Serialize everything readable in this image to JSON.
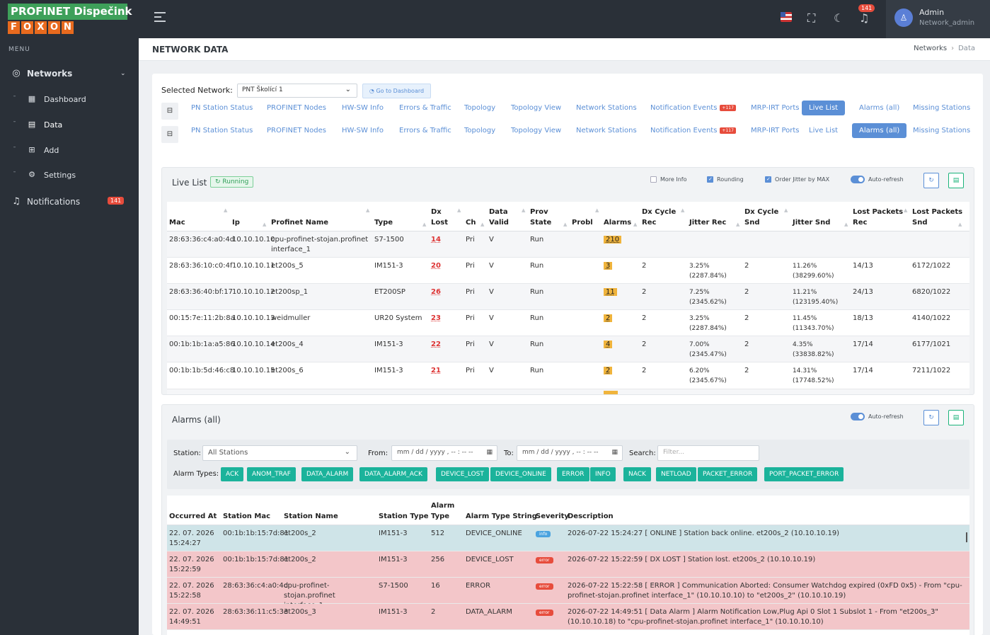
{
  "brand": {
    "title": "PROFINET Dispečink",
    "letters": [
      "F",
      "O",
      "X",
      "O",
      "N"
    ]
  },
  "sidebar": {
    "menu_label": "MENU",
    "networks": "Networks",
    "items": [
      {
        "label": "Dashboard"
      },
      {
        "label": "Data"
      },
      {
        "label": "Add"
      },
      {
        "label": "Settings"
      }
    ],
    "notifications": "Notifications",
    "notifications_count": "141"
  },
  "topbar": {
    "bell_count": "141",
    "user_name": "Admin",
    "user_role": "Network_admin"
  },
  "page": {
    "title": "NETWORK DATA",
    "breadcrumb": [
      "Networks",
      "Data"
    ]
  },
  "selector": {
    "label": "Selected Network:",
    "value": "PNT Školící 1",
    "go_button": "Go to Dashboard"
  },
  "tabs": {
    "labels": [
      "PN Station Status",
      "PROFINET Nodes",
      "HW-SW Info",
      "Errors & Traffic",
      "Topology",
      "Topology View",
      "Network Stations",
      "Notification Events",
      "MRP-IRT Ports",
      "Live List",
      "Alarms (all)",
      "Missing Stations"
    ],
    "badge": "+117",
    "row1_active": "Live List",
    "row2_active": "Alarms (all)"
  },
  "livelist": {
    "title": "Live List",
    "status": "Running",
    "options": [
      "More Info",
      "Rounding",
      "Order Jitter by MAX",
      "Auto-refresh"
    ],
    "headers": [
      "Mac",
      "Ip",
      "Profinet Name",
      "Type",
      "Dx Lost",
      "Ch",
      "Data Valid",
      "Prov State",
      "Probl",
      "Alarms",
      "Dx Cycle Rec",
      "Jitter Rec",
      "Dx Cycle Snd",
      "Jitter Snd",
      "Lost Packets Rec",
      "Lost Packets Snd"
    ],
    "rows": [
      {
        "mac": "28:63:36:c4:a0:4d",
        "ip": "10.10.10.10",
        "name": "cpu-profinet-stojan.profinet interface_1",
        "type": "S7-1500",
        "dx": "14",
        "ch": "Pri",
        "valid": "V",
        "prov": "Run",
        "alarms": "210",
        "cyc_rec": "",
        "jit_rec": "",
        "cyc_snd": "",
        "jit_snd": "",
        "lost_rec": "",
        "lost_snd": ""
      },
      {
        "mac": "28:63:36:10:c0:4f",
        "ip": "10.10.10.11",
        "name": "et200s_5",
        "type": "IM151-3",
        "dx": "20",
        "ch": "Pri",
        "valid": "V",
        "prov": "Run",
        "alarms": "3",
        "cyc_rec": "2",
        "jit_rec": "3.25% (2287.84%)",
        "cyc_snd": "2",
        "jit_snd": "11.26% (38299.60%)",
        "lost_rec": "14/13",
        "lost_snd": "6172/1022"
      },
      {
        "mac": "28:63:36:40:bf:17",
        "ip": "10.10.10.12",
        "name": "et200sp_1",
        "type": "ET200SP",
        "dx": "26",
        "ch": "Pri",
        "valid": "V",
        "prov": "Run",
        "alarms": "11",
        "cyc_rec": "2",
        "jit_rec": "7.25% (2345.62%)",
        "cyc_snd": "2",
        "jit_snd": "11.21% (123195.40%)",
        "lost_rec": "24/13",
        "lost_snd": "6820/1022"
      },
      {
        "mac": "00:15:7e:11:2b:8a",
        "ip": "10.10.10.13",
        "name": "weidmuller",
        "type": "UR20 System",
        "dx": "23",
        "ch": "Pri",
        "valid": "V",
        "prov": "Run",
        "alarms": "2",
        "cyc_rec": "2",
        "jit_rec": "3.25% (2287.84%)",
        "cyc_snd": "2",
        "jit_snd": "11.45% (11343.70%)",
        "lost_rec": "18/13",
        "lost_snd": "4140/1022"
      },
      {
        "mac": "00:1b:1b:1a:a5:86",
        "ip": "10.10.10.14",
        "name": "et200s_4",
        "type": "IM151-3",
        "dx": "22",
        "ch": "Pri",
        "valid": "V",
        "prov": "Run",
        "alarms": "4",
        "cyc_rec": "2",
        "jit_rec": "7.00% (2345.47%)",
        "cyc_snd": "2",
        "jit_snd": "4.35% (33838.82%)",
        "lost_rec": "17/14",
        "lost_snd": "6177/1021"
      },
      {
        "mac": "00:1b:1b:5d:46:c8",
        "ip": "10.10.10.15",
        "name": "et200s_6",
        "type": "IM151-3",
        "dx": "21",
        "ch": "Pri",
        "valid": "V",
        "prov": "Run",
        "alarms": "2",
        "cyc_rec": "2",
        "jit_rec": "6.20% (2345.67%)",
        "cyc_snd": "2",
        "jit_snd": "14.31% (17748.52%)",
        "lost_rec": "17/14",
        "lost_snd": "7211/1022"
      }
    ]
  },
  "alarms": {
    "title": "Alarms (all)",
    "auto_refresh": "Auto-refresh",
    "filters": {
      "station_label": "Station:",
      "station_value": "All Stations",
      "from_label": "From:",
      "to_label": "To:",
      "date_placeholder": "mm / dd / yyyy ,  -- : --   --",
      "search_label": "Search:",
      "search_placeholder": "Filter...",
      "types_label": "Alarm Types:",
      "types": [
        "ACK",
        "ANOM_TRAF",
        "DATA_ALARM",
        "DATA_ALARM_ACK",
        "DEVICE_LOST",
        "DEVICE_ONLINE",
        "ERROR",
        "INFO",
        "NACK",
        "NETLOAD",
        "PACKET_ERROR",
        "PORT_PACKET_ERROR"
      ]
    },
    "headers": [
      "Occurred At",
      "Station Mac",
      "Station Name",
      "Station Type",
      "Alarm Type",
      "Alarm Type String",
      "Severity",
      "Description"
    ],
    "rows": [
      {
        "date": "22. 07. 2026",
        "time": "15:24:27",
        "mac": "00:1b:1b:15:7d:81",
        "name": "et200s_2",
        "stype": "IM151-3",
        "atype": "512",
        "astr": "DEVICE_ONLINE",
        "sev": "info",
        "desc": "2026-07-22 15:24:27 [ ONLINE ] Station back online. et200s_2 (10.10.10.19)",
        "bg": "#cfe4e8",
        "sevbg": "#4aa3df"
      },
      {
        "date": "22. 07. 2026",
        "time": "15:22:59",
        "mac": "00:1b:1b:15:7d:81",
        "name": "et200s_2",
        "stype": "IM151-3",
        "atype": "256",
        "astr": "DEVICE_LOST",
        "sev": "error",
        "desc": "2026-07-22 15:22:59 [ DX LOST ] Station lost. et200s_2 (10.10.10.19)",
        "bg": "#f3c6c9",
        "sevbg": "#e74c3c"
      },
      {
        "date": "22. 07. 2026",
        "time": "15:22:58",
        "mac": "28:63:36:c4:a0:4d",
        "name": "cpu-profinet-stojan.profinet interface_1",
        "stype": "S7-1500",
        "atype": "16",
        "astr": "ERROR",
        "sev": "error",
        "desc": "2026-07-22 15:22:58 [ ERROR ] Communication Aborted: Consumer Watchdog expired (0xFD 0x5) - From \"cpu-profinet-stojan.profinet interface_1\" (10.10.10.10) to \"et200s_2\" (10.10.10.19)",
        "bg": "#f3c6c9",
        "sevbg": "#e74c3c"
      },
      {
        "date": "22. 07. 2026",
        "time": "14:49:51",
        "mac": "28:63:36:11:c5:33",
        "name": "et200s_3",
        "stype": "IM151-3",
        "atype": "2",
        "astr": "DATA_ALARM",
        "sev": "error",
        "desc": "2026-07-22 14:49:51 [ Data Alarm ] Alarm Notification Low,Plug Api 0 Slot 1 Subslot 1 - From \"et200s_3\" (10.10.10.18) to \"cpu-profinet-stojan.profinet interface_1\" (10.10.10.10)",
        "bg": "#f3c6c9",
        "sevbg": "#e74c3c"
      }
    ]
  }
}
